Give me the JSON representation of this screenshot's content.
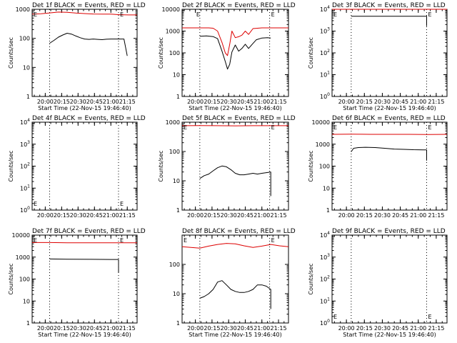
{
  "chart_data": [
    {
      "type": "line",
      "title": "Det 1f BLACK = Events, RED = LLD",
      "xlabel": "Start Time (22-Nov-15 19:46:40)",
      "ylabel": "Counts/sec",
      "yscale": "log",
      "ylim": [
        1,
        1000
      ],
      "yticks": [
        "1",
        "10",
        "100",
        "1000"
      ],
      "xlim": [
        "19:48",
        "21:24"
      ],
      "xticks": [
        "20:00",
        "20:15",
        "20:30",
        "20:45",
        "21:00",
        "21:15"
      ],
      "markers": [
        "19:48",
        "20:04",
        "21:07"
      ],
      "marker_labels": [
        "E",
        "E"
      ],
      "series": [
        {
          "color": "#000000",
          "x": [
            "20:04",
            "20:08",
            "20:12",
            "20:16",
            "20:20",
            "20:24",
            "20:28",
            "20:32",
            "20:36",
            "20:40",
            "20:44",
            "20:48",
            "20:52",
            "20:56",
            "21:00",
            "21:04",
            "21:08",
            "21:12",
            "21:15"
          ],
          "y": [
            68,
            85,
            110,
            130,
            150,
            140,
            120,
            105,
            95,
            92,
            95,
            92,
            90,
            93,
            95,
            95,
            95,
            95,
            25
          ]
        },
        {
          "color": "#dd0000",
          "x": [
            "19:48",
            "19:56",
            "20:04",
            "20:12",
            "20:20",
            "20:28",
            "20:36",
            "20:44",
            "20:52",
            "21:00",
            "21:08",
            "21:16",
            "21:24"
          ],
          "y": [
            680,
            700,
            750,
            800,
            790,
            740,
            710,
            690,
            680,
            680,
            650,
            640,
            640
          ]
        }
      ]
    },
    {
      "type": "line",
      "title": "Det 2f BLACK = Events, RED = LLD",
      "xlabel": "Start Time (22-Nov-15 19:46:40)",
      "ylabel": "Counts/sec",
      "yscale": "log",
      "ylim": [
        1,
        10000
      ],
      "yticks": [
        "1",
        "10",
        "100",
        "1000",
        "10000"
      ],
      "xlim": [
        "19:48",
        "21:24"
      ],
      "xticks": [
        "20:00",
        "20:15",
        "20:30",
        "20:45",
        "21:00",
        "21:15"
      ],
      "markers": [
        "20:04",
        "21:07"
      ],
      "marker_labels": [
        "E",
        "E"
      ],
      "series": [
        {
          "color": "#000000",
          "x": [
            "20:04",
            "20:10",
            "20:16",
            "20:20",
            "20:24",
            "20:27",
            "20:29",
            "20:31",
            "20:33",
            "20:36",
            "20:39",
            "20:42",
            "20:45",
            "20:48",
            "20:51",
            "20:55",
            "21:00",
            "21:05",
            "21:08"
          ],
          "y": [
            580,
            600,
            560,
            450,
            120,
            40,
            18,
            30,
            110,
            230,
            120,
            160,
            250,
            160,
            240,
            400,
            480,
            500,
            480
          ]
        },
        {
          "color": "#dd0000",
          "x": [
            "19:48",
            "20:04",
            "20:12",
            "20:16",
            "20:20",
            "20:24",
            "20:27",
            "20:29",
            "20:31",
            "20:33",
            "20:36",
            "20:39",
            "20:42",
            "20:45",
            "20:48",
            "20:52",
            "21:00",
            "21:24"
          ],
          "y": [
            1400,
            1400,
            1400,
            1350,
            1000,
            300,
            100,
            75,
            250,
            1000,
            500,
            550,
            650,
            1000,
            700,
            1300,
            1400,
            1400
          ]
        }
      ]
    },
    {
      "type": "line",
      "title": "Det 3f BLACK = Events, RED = LLD",
      "xlabel": "Start Time (22-Nov-15 19:46:40)",
      "ylabel": "Counts/sec",
      "yscale": "log",
      "ylim": [
        1,
        10000
      ],
      "yticks": [
        "10^0",
        "10^1",
        "10^2",
        "10^3",
        "10^4"
      ],
      "xlim": [
        "19:48",
        "21:24"
      ],
      "xticks": [
        "20:00",
        "20:15",
        "20:30",
        "20:45",
        "21:00",
        "21:15"
      ],
      "markers": [
        "19:48",
        "20:04",
        "21:07"
      ],
      "marker_labels": [
        "E",
        "E"
      ],
      "series": [
        {
          "color": "#000000",
          "x": [
            "20:04",
            "20:20",
            "20:40",
            "21:00",
            "21:07",
            "21:07"
          ],
          "y": [
            4800,
            4800,
            4800,
            4800,
            4800,
            1700
          ]
        },
        {
          "color": "#dd0000",
          "x": [
            "19:48",
            "21:24"
          ],
          "y": [
            11000,
            11000
          ]
        }
      ]
    },
    {
      "type": "line",
      "title": "Det 4f BLACK = Events, RED = LLD",
      "xlabel": "",
      "ylabel": "Counts/sec",
      "yscale": "log",
      "ylim": [
        1,
        10000
      ],
      "yticks": [
        "10^0",
        "10^1",
        "10^2",
        "10^3",
        "10^4"
      ],
      "xlim": [
        "19:48",
        "21:24"
      ],
      "xticks": [
        "20:00",
        "20:15",
        "20:30",
        "20:45",
        "21:00",
        "21:15"
      ],
      "markers": [
        "20:04",
        "21:07"
      ],
      "marker_labels": [
        "E",
        "E"
      ],
      "series": []
    },
    {
      "type": "line",
      "title": "Det 5f BLACK = Events, RED = LLD",
      "xlabel": "",
      "ylabel": "Counts/sec",
      "yscale": "log",
      "ylim": [
        1,
        1000
      ],
      "yticks": [
        "1",
        "10",
        "100",
        "1000"
      ],
      "xlim": [
        "19:48",
        "21:24"
      ],
      "xticks": [
        "20:00",
        "20:15",
        "20:30",
        "20:45",
        "21:00",
        "21:15"
      ],
      "markers": [
        "19:48",
        "20:04",
        "21:07"
      ],
      "marker_labels": [
        "E",
        "E"
      ],
      "series": [
        {
          "color": "#000000",
          "x": [
            "20:04",
            "20:08",
            "20:12",
            "20:16",
            "20:20",
            "20:24",
            "20:28",
            "20:32",
            "20:36",
            "20:40",
            "20:44",
            "20:48",
            "20:52",
            "20:56",
            "21:00",
            "21:04",
            "21:08",
            "21:08"
          ],
          "y": [
            12,
            15,
            17,
            22,
            28,
            32,
            30,
            24,
            18,
            16,
            16,
            17,
            18,
            17,
            18,
            19,
            20,
            3
          ]
        },
        {
          "color": "#dd0000",
          "x": [
            "19:48",
            "20:04",
            "20:20",
            "20:36",
            "20:52",
            "21:08",
            "21:24"
          ],
          "y": [
            760,
            770,
            760,
            750,
            760,
            760,
            760
          ]
        }
      ]
    },
    {
      "type": "line",
      "title": "Det 6f BLACK = Events, RED = LLD",
      "xlabel": "",
      "ylabel": "Counts/sec",
      "yscale": "log",
      "ylim": [
        1,
        10000
      ],
      "yticks": [
        "1",
        "10",
        "100",
        "1000",
        "10000"
      ],
      "xlim": [
        "19:48",
        "21:24"
      ],
      "xticks": [
        "20:00",
        "20:15",
        "20:30",
        "20:45",
        "21:00",
        "21:15"
      ],
      "markers": [
        "19:48",
        "20:04",
        "21:07"
      ],
      "marker_labels": [
        "E",
        "E"
      ],
      "series": [
        {
          "color": "#000000",
          "x": [
            "20:04",
            "20:06",
            "20:10",
            "20:16",
            "20:24",
            "20:32",
            "20:40",
            "20:48",
            "20:56",
            "21:04",
            "21:07",
            "21:07"
          ],
          "y": [
            450,
            650,
            700,
            720,
            700,
            650,
            600,
            580,
            560,
            550,
            550,
            180
          ]
        },
        {
          "color": "#dd0000",
          "x": [
            "19:48",
            "20:04",
            "20:20",
            "20:36",
            "20:52",
            "21:08",
            "21:24"
          ],
          "y": [
            2800,
            2850,
            2800,
            2800,
            2800,
            2750,
            2800
          ]
        }
      ]
    },
    {
      "type": "line",
      "title": "Det 7f BLACK = Events, RED = LLD",
      "xlabel": "Start Time (22-Nov-15 19:46:40)",
      "ylabel": "Counts/sec",
      "yscale": "log",
      "ylim": [
        1,
        10000
      ],
      "yticks": [
        "1",
        "10",
        "100",
        "1000",
        "10000"
      ],
      "xlim": [
        "19:48",
        "21:24"
      ],
      "xticks": [
        "20:00",
        "20:15",
        "20:30",
        "20:45",
        "21:00",
        "21:15"
      ],
      "markers": [
        "19:48",
        "20:04",
        "21:07"
      ],
      "marker_labels": [
        "E",
        "E"
      ],
      "series": [
        {
          "color": "#000000",
          "x": [
            "20:04",
            "20:20",
            "20:40",
            "21:00",
            "21:07",
            "21:07"
          ],
          "y": [
            820,
            800,
            790,
            780,
            780,
            200
          ]
        },
        {
          "color": "#dd0000",
          "x": [
            "19:48",
            "20:04",
            "20:20",
            "20:36",
            "20:52",
            "21:08",
            "21:24"
          ],
          "y": [
            4600,
            4600,
            4500,
            4500,
            4500,
            4500,
            4500
          ]
        }
      ]
    },
    {
      "type": "line",
      "title": "Det 8f BLACK = Events, RED = LLD",
      "xlabel": "Start Time (22-Nov-15 19:46:40)",
      "ylabel": "",
      "yscale": "log",
      "ylim": [
        1,
        1000
      ],
      "yticks": [
        "1",
        "10",
        "100"
      ],
      "xlim": [
        "19:48",
        "21:24"
      ],
      "xticks": [
        "20:00",
        "20:15",
        "20:30",
        "20:45",
        "21:00",
        "21:15"
      ],
      "markers": [
        "19:48",
        "20:04",
        "21:07"
      ],
      "marker_labels": [
        "E",
        "E"
      ],
      "series": [
        {
          "color": "#000000",
          "x": [
            "20:04",
            "20:08",
            "20:12",
            "20:16",
            "20:20",
            "20:24",
            "20:28",
            "20:32",
            "20:36",
            "20:40",
            "20:44",
            "20:48",
            "20:52",
            "20:56",
            "21:00",
            "21:04",
            "21:08",
            "21:08"
          ],
          "y": [
            7,
            8,
            10,
            14,
            25,
            28,
            20,
            14,
            12,
            11,
            11,
            12,
            14,
            20,
            20,
            18,
            14,
            3
          ]
        },
        {
          "color": "#dd0000",
          "x": [
            "19:48",
            "19:56",
            "20:04",
            "20:12",
            "20:20",
            "20:28",
            "20:36",
            "20:44",
            "20:52",
            "21:00",
            "21:08",
            "21:16",
            "21:24"
          ],
          "y": [
            400,
            380,
            360,
            420,
            480,
            520,
            500,
            430,
            380,
            420,
            480,
            430,
            400
          ]
        }
      ]
    },
    {
      "type": "line",
      "title": "Det 9f BLACK = Events, RED = LLD",
      "xlabel": "Start Time (22-Nov-15 19:46:40)",
      "ylabel": "Counts/sec",
      "yscale": "log",
      "ylim": [
        1,
        10000
      ],
      "yticks": [
        "10^0",
        "10^1",
        "10^2",
        "10^3",
        "10^4"
      ],
      "xlim": [
        "19:48",
        "21:24"
      ],
      "xticks": [
        "20:00",
        "20:15",
        "20:30",
        "20:45",
        "21:00",
        "21:15"
      ],
      "markers": [
        "20:04",
        "21:07"
      ],
      "marker_labels": [
        "E",
        "E"
      ],
      "series": []
    }
  ]
}
